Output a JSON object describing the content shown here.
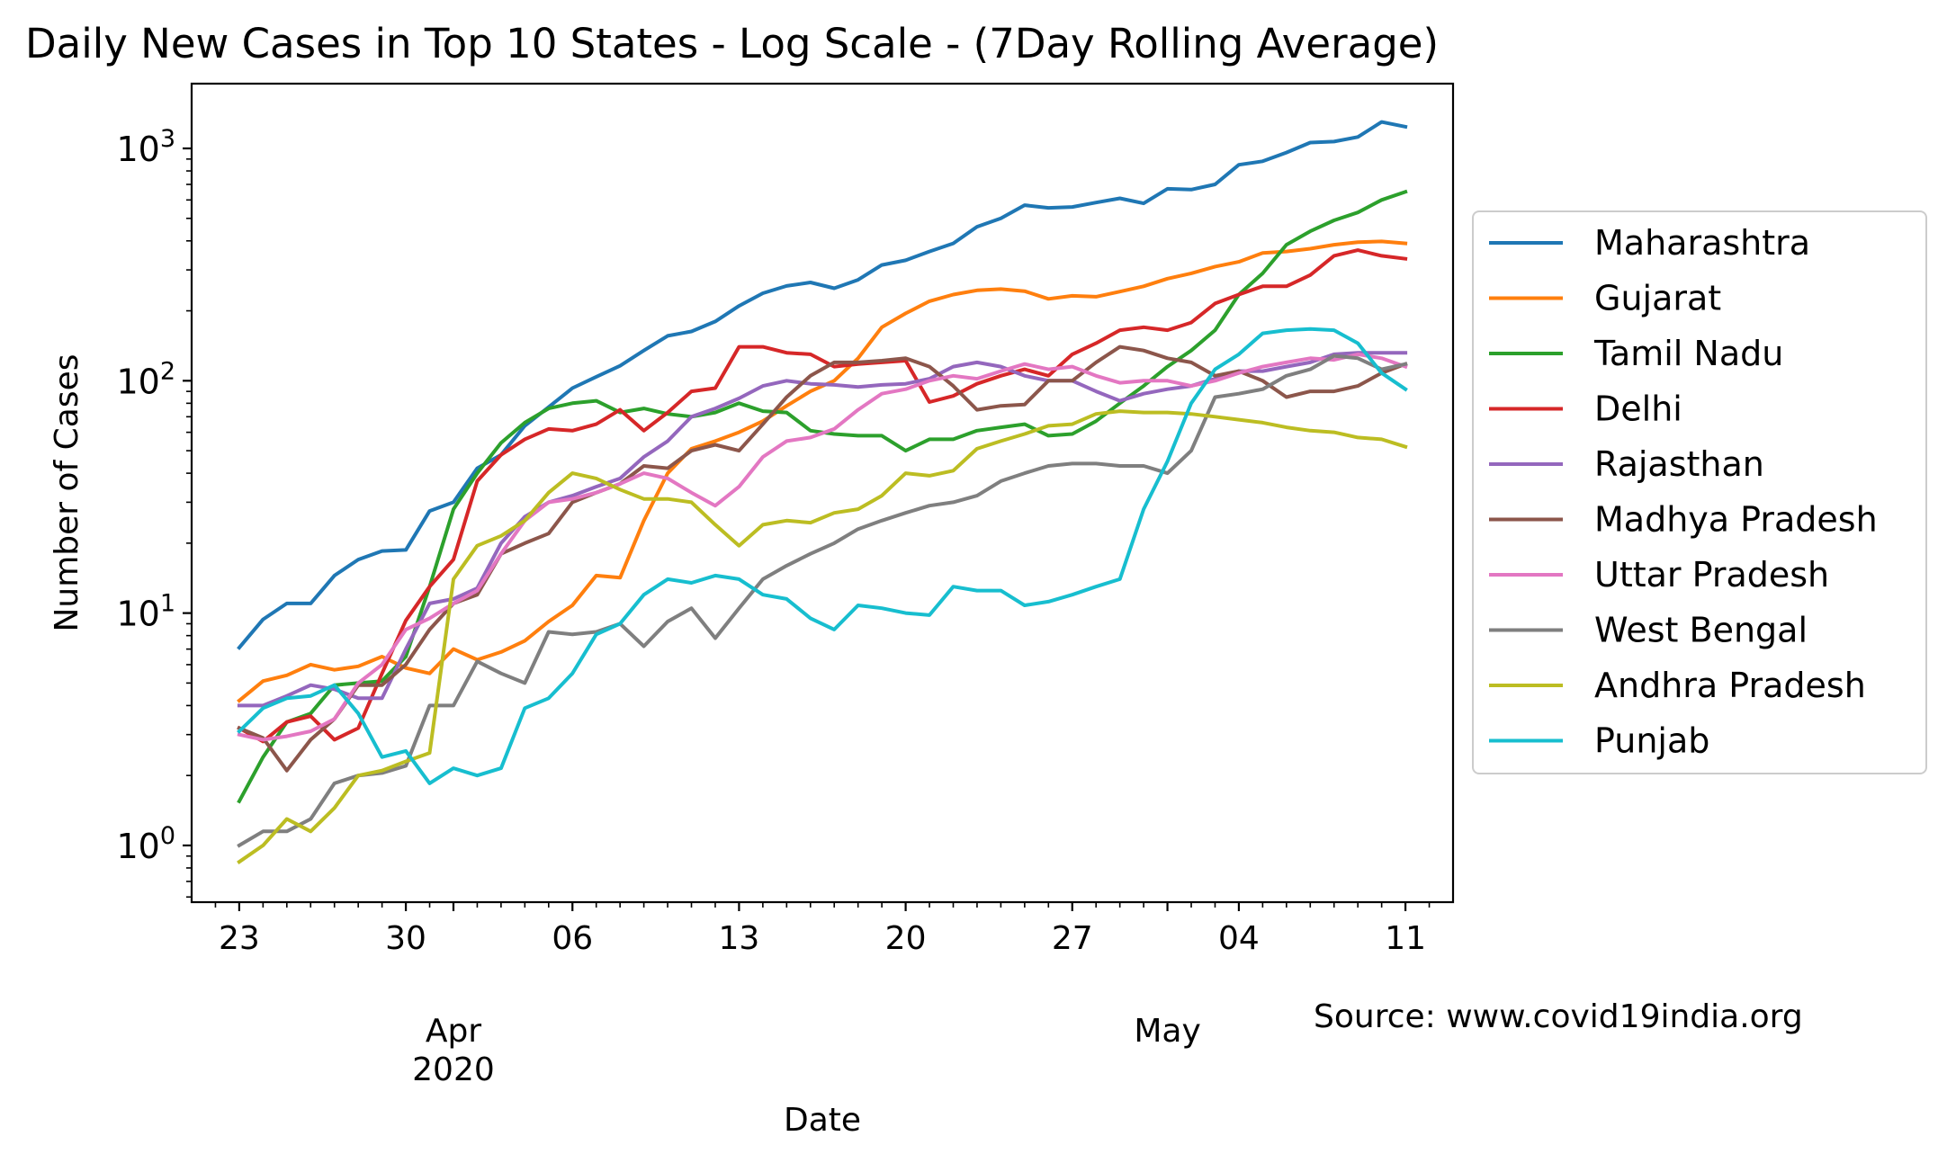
{
  "chart_data": {
    "type": "line",
    "title": "Daily New Cases in Top 10 States - Log Scale - (7Day Rolling Average)",
    "xlabel": "Date",
    "ylabel": "Number of Cases",
    "yscale": "log",
    "ylim": [
      0.57,
      1900
    ],
    "xlim": [
      "2020-03-21",
      "2020-05-13"
    ],
    "x_start": "2020-03-23",
    "x_ticks": [
      {
        "date": "2020-03-23",
        "label": "23"
      },
      {
        "date": "2020-03-30",
        "label": "30"
      },
      {
        "date": "2020-04-06",
        "label": "06"
      },
      {
        "date": "2020-04-13",
        "label": "13"
      },
      {
        "date": "2020-04-20",
        "label": "20"
      },
      {
        "date": "2020-04-27",
        "label": "27"
      },
      {
        "date": "2020-05-04",
        "label": "04"
      },
      {
        "date": "2020-05-11",
        "label": "11"
      }
    ],
    "x_month_labels": [
      {
        "date": "2020-04-01",
        "label": "Apr\n2020"
      },
      {
        "date": "2020-05-01",
        "label": "May"
      }
    ],
    "y_ticks": [
      {
        "value": 1,
        "base": "10",
        "exp": "0"
      },
      {
        "value": 10,
        "base": "10",
        "exp": "1"
      },
      {
        "value": 100,
        "base": "10",
        "exp": "2"
      },
      {
        "value": 1000,
        "base": "10",
        "exp": "3"
      }
    ],
    "legend_position": "right",
    "grid": false,
    "source_note": "Source: www.covid19india.org",
    "series": [
      {
        "name": "Maharashtra",
        "color": "#1f77b4",
        "values": [
          7.1,
          9.4,
          11,
          11,
          14.5,
          17,
          18.5,
          18.7,
          27.5,
          30,
          42,
          48,
          64,
          77,
          93,
          104,
          116,
          135,
          156,
          163,
          180,
          210,
          238,
          256,
          265,
          250,
          272,
          315,
          330,
          360,
          390,
          460,
          500,
          570,
          555,
          560,
          585,
          610,
          580,
          670,
          665,
          700,
          850,
          880,
          960,
          1060,
          1070,
          1120,
          1300,
          1240
        ]
      },
      {
        "name": "Gujarat",
        "color": "#ff7f0e",
        "values": [
          4.2,
          5.1,
          5.4,
          6,
          5.7,
          5.9,
          6.5,
          5.8,
          5.5,
          7,
          6.3,
          6.8,
          7.6,
          9.2,
          10.8,
          14.5,
          14.2,
          25,
          40,
          51,
          55,
          60,
          67,
          78,
          90,
          100,
          125,
          170,
          195,
          220,
          235,
          245,
          248,
          243,
          225,
          232,
          230,
          242,
          255,
          275,
          290,
          310,
          325,
          355,
          360,
          370,
          385,
          395,
          398,
          390
        ]
      },
      {
        "name": "Tamil Nadu",
        "color": "#2ca02c",
        "values": [
          1.55,
          2.4,
          3.4,
          3.7,
          4.9,
          5,
          5.1,
          6.5,
          13,
          28,
          40,
          54,
          66,
          76,
          80,
          82,
          73,
          76,
          72,
          70,
          73,
          80,
          74,
          73,
          61,
          59,
          58,
          58,
          50,
          56,
          56,
          61,
          63,
          65,
          58,
          59,
          67,
          80,
          95,
          115,
          135,
          165,
          235,
          290,
          385,
          440,
          490,
          530,
          600,
          650
        ]
      },
      {
        "name": "Delhi",
        "color": "#d62728",
        "values": [
          3.2,
          2.8,
          3.4,
          3.6,
          2.85,
          3.2,
          5.5,
          9.3,
          13,
          17,
          37,
          48,
          56,
          62,
          61,
          65,
          75,
          61,
          73,
          90,
          93,
          140,
          140,
          132,
          130,
          115,
          118,
          120,
          122,
          81,
          86,
          97,
          105,
          112,
          105,
          130,
          145,
          165,
          170,
          165,
          178,
          215,
          235,
          255,
          255,
          285,
          345,
          365,
          345,
          335
        ]
      },
      {
        "name": "Rajasthan",
        "color": "#9467bd",
        "values": [
          4,
          4,
          4.4,
          4.9,
          4.7,
          4.3,
          4.3,
          7,
          11,
          11.5,
          12.8,
          20,
          26,
          30,
          32,
          35,
          38,
          47,
          55,
          70,
          76,
          84,
          95,
          100,
          97,
          96,
          94,
          96,
          97,
          102,
          115,
          120,
          115,
          105,
          100,
          100,
          90,
          82,
          88,
          92,
          95,
          102,
          110,
          110,
          115,
          120,
          130,
          132,
          132,
          132
        ]
      },
      {
        "name": "Madhya Pradesh",
        "color": "#8c564b",
        "values": [
          3.2,
          2.9,
          2.1,
          2.85,
          3.5,
          4.9,
          4.9,
          6,
          8.5,
          11,
          12,
          18,
          20,
          22,
          30,
          33,
          36,
          43,
          42,
          50,
          53,
          50,
          65,
          85,
          105,
          120,
          120,
          122,
          125,
          115,
          95,
          75,
          78,
          79,
          100,
          100,
          120,
          140,
          135,
          125,
          120,
          105,
          110,
          100,
          85,
          90,
          90,
          95,
          108,
          118
        ]
      },
      {
        "name": "Uttar Pradesh",
        "color": "#e377c2",
        "values": [
          3,
          2.85,
          2.95,
          3.1,
          3.5,
          5,
          6,
          8.5,
          9.5,
          11,
          12.5,
          18,
          25,
          30,
          31,
          33,
          36,
          40,
          38,
          33,
          29,
          35,
          47,
          55,
          57,
          62,
          75,
          88,
          92,
          100,
          105,
          102,
          110,
          118,
          112,
          115,
          105,
          98,
          100,
          100,
          95,
          100,
          108,
          115,
          120,
          125,
          123,
          130,
          125,
          115
        ]
      },
      {
        "name": "West Bengal",
        "color": "#7f7f7f",
        "values": [
          1,
          1.15,
          1.15,
          1.3,
          1.85,
          2,
          2.05,
          2.2,
          4,
          4,
          6.2,
          5.5,
          5,
          8.3,
          8.1,
          8.3,
          9,
          7.2,
          9.2,
          10.5,
          7.8,
          10.5,
          14,
          16,
          18,
          20,
          23,
          25,
          27,
          29,
          30,
          32,
          37,
          40,
          43,
          44,
          44,
          43,
          43,
          40,
          50,
          85,
          88,
          92,
          105,
          112,
          128,
          125,
          112,
          118
        ]
      },
      {
        "name": "Andhra Pradesh",
        "color": "#bcbd22",
        "values": [
          0.85,
          1,
          1.3,
          1.15,
          1.45,
          2,
          2.1,
          2.3,
          2.5,
          14,
          19.5,
          21.5,
          25,
          33,
          40,
          38,
          34,
          31,
          31,
          30,
          24,
          19.5,
          24,
          25,
          24.5,
          27,
          28,
          32,
          40,
          39,
          41,
          51,
          55,
          59,
          64,
          65,
          72,
          74,
          73,
          73,
          72,
          70,
          68,
          66,
          63,
          61,
          60,
          57,
          56,
          52
        ]
      },
      {
        "name": "Punjab",
        "color": "#17becf",
        "values": [
          3.1,
          3.9,
          4.3,
          4.4,
          4.9,
          3.7,
          2.4,
          2.55,
          1.85,
          2.15,
          2,
          2.15,
          3.9,
          4.3,
          5.5,
          8.1,
          9,
          12,
          14,
          13.5,
          14.5,
          14,
          12,
          11.5,
          9.5,
          8.5,
          10.8,
          10.5,
          10,
          9.8,
          13,
          12.5,
          12.5,
          10.8,
          11.2,
          12,
          13,
          14,
          28,
          45,
          80,
          112,
          130,
          160,
          165,
          167,
          165,
          145,
          108,
          92
        ]
      }
    ]
  }
}
